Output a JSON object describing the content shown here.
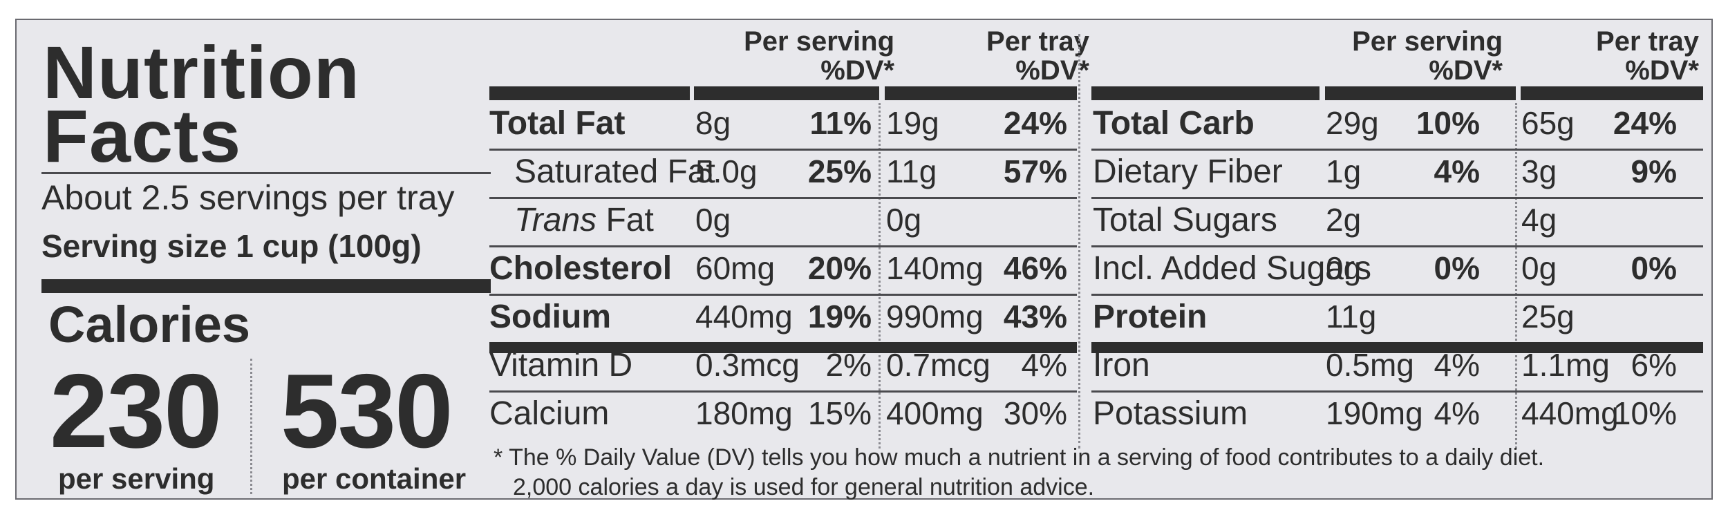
{
  "title": {
    "line1": "Nutrition",
    "line2": "Facts"
  },
  "servings_per_tray": "About 2.5 servings per tray",
  "serving_size": "Serving size 1 cup (100g)",
  "calories": {
    "label": "Calories",
    "per_serving": {
      "value": "230",
      "label": "per serving"
    },
    "per_container": {
      "value": "530",
      "label": "per container"
    }
  },
  "headers": {
    "per_serving_l1": "Per serving",
    "per_tray_l1": "Per tray",
    "dv": "%DV*"
  },
  "left_rows": [
    {
      "name": "Total Fat",
      "bold": true,
      "s_amt": "8g",
      "s_dv": "11%",
      "t_amt": "19g",
      "t_dv": "24%"
    },
    {
      "name": "Saturated Fat",
      "indent": true,
      "s_amt": "5.0g",
      "s_dv": "25%",
      "t_amt": "11g",
      "t_dv": "57%"
    },
    {
      "name_italic": "Trans",
      "name_rest": " Fat",
      "indent": true,
      "s_amt": "0g",
      "s_dv": "",
      "t_amt": "0g",
      "t_dv": ""
    },
    {
      "name": "Cholesterol",
      "bold": true,
      "s_amt": "60mg",
      "s_dv": "20%",
      "t_amt": "140mg",
      "t_dv": "46%"
    },
    {
      "name": "Sodium",
      "bold": true,
      "s_amt": "440mg",
      "s_dv": "19%",
      "t_amt": "990mg",
      "t_dv": "43%"
    },
    {
      "name": "Vitamin D",
      "s_amt": "0.3mcg",
      "s_dv": "2%",
      "t_amt": "0.7mcg",
      "t_dv": "4%"
    },
    {
      "name": "Calcium",
      "s_amt": "180mg",
      "s_dv": "15%",
      "t_amt": "400mg",
      "t_dv": "30%"
    }
  ],
  "right_rows": [
    {
      "name": "Total Carb",
      "bold": true,
      "s_amt": "29g",
      "s_dv": "10%",
      "t_amt": "65g",
      "t_dv": "24%"
    },
    {
      "name": "Dietary Fiber",
      "s_amt": "1g",
      "s_dv": "4%",
      "t_amt": "3g",
      "t_dv": "9%"
    },
    {
      "name": "Total Sugars",
      "s_amt": "2g",
      "s_dv": "",
      "t_amt": "4g",
      "t_dv": ""
    },
    {
      "name": "Incl. Added Sugars",
      "s_amt": "0g",
      "s_dv": "0%",
      "t_amt": "0g",
      "t_dv": "0%"
    },
    {
      "name": "Protein",
      "bold": true,
      "s_amt": "11g",
      "s_dv": "",
      "t_amt": "25g",
      "t_dv": ""
    },
    {
      "name": "Iron",
      "s_amt": "0.5mg",
      "s_dv": "4%",
      "t_amt": "1.1mg",
      "t_dv": "6%"
    },
    {
      "name": "Potassium",
      "s_amt": "190mg",
      "s_dv": "4%",
      "t_amt": "440mg",
      "t_dv": "10%"
    }
  ],
  "footnote": {
    "line1": "* The % Daily Value (DV) tells you how much a nutrient in a serving of food contributes to a daily diet.",
    "line2": "2,000 calories a day is used for general nutrition advice."
  }
}
